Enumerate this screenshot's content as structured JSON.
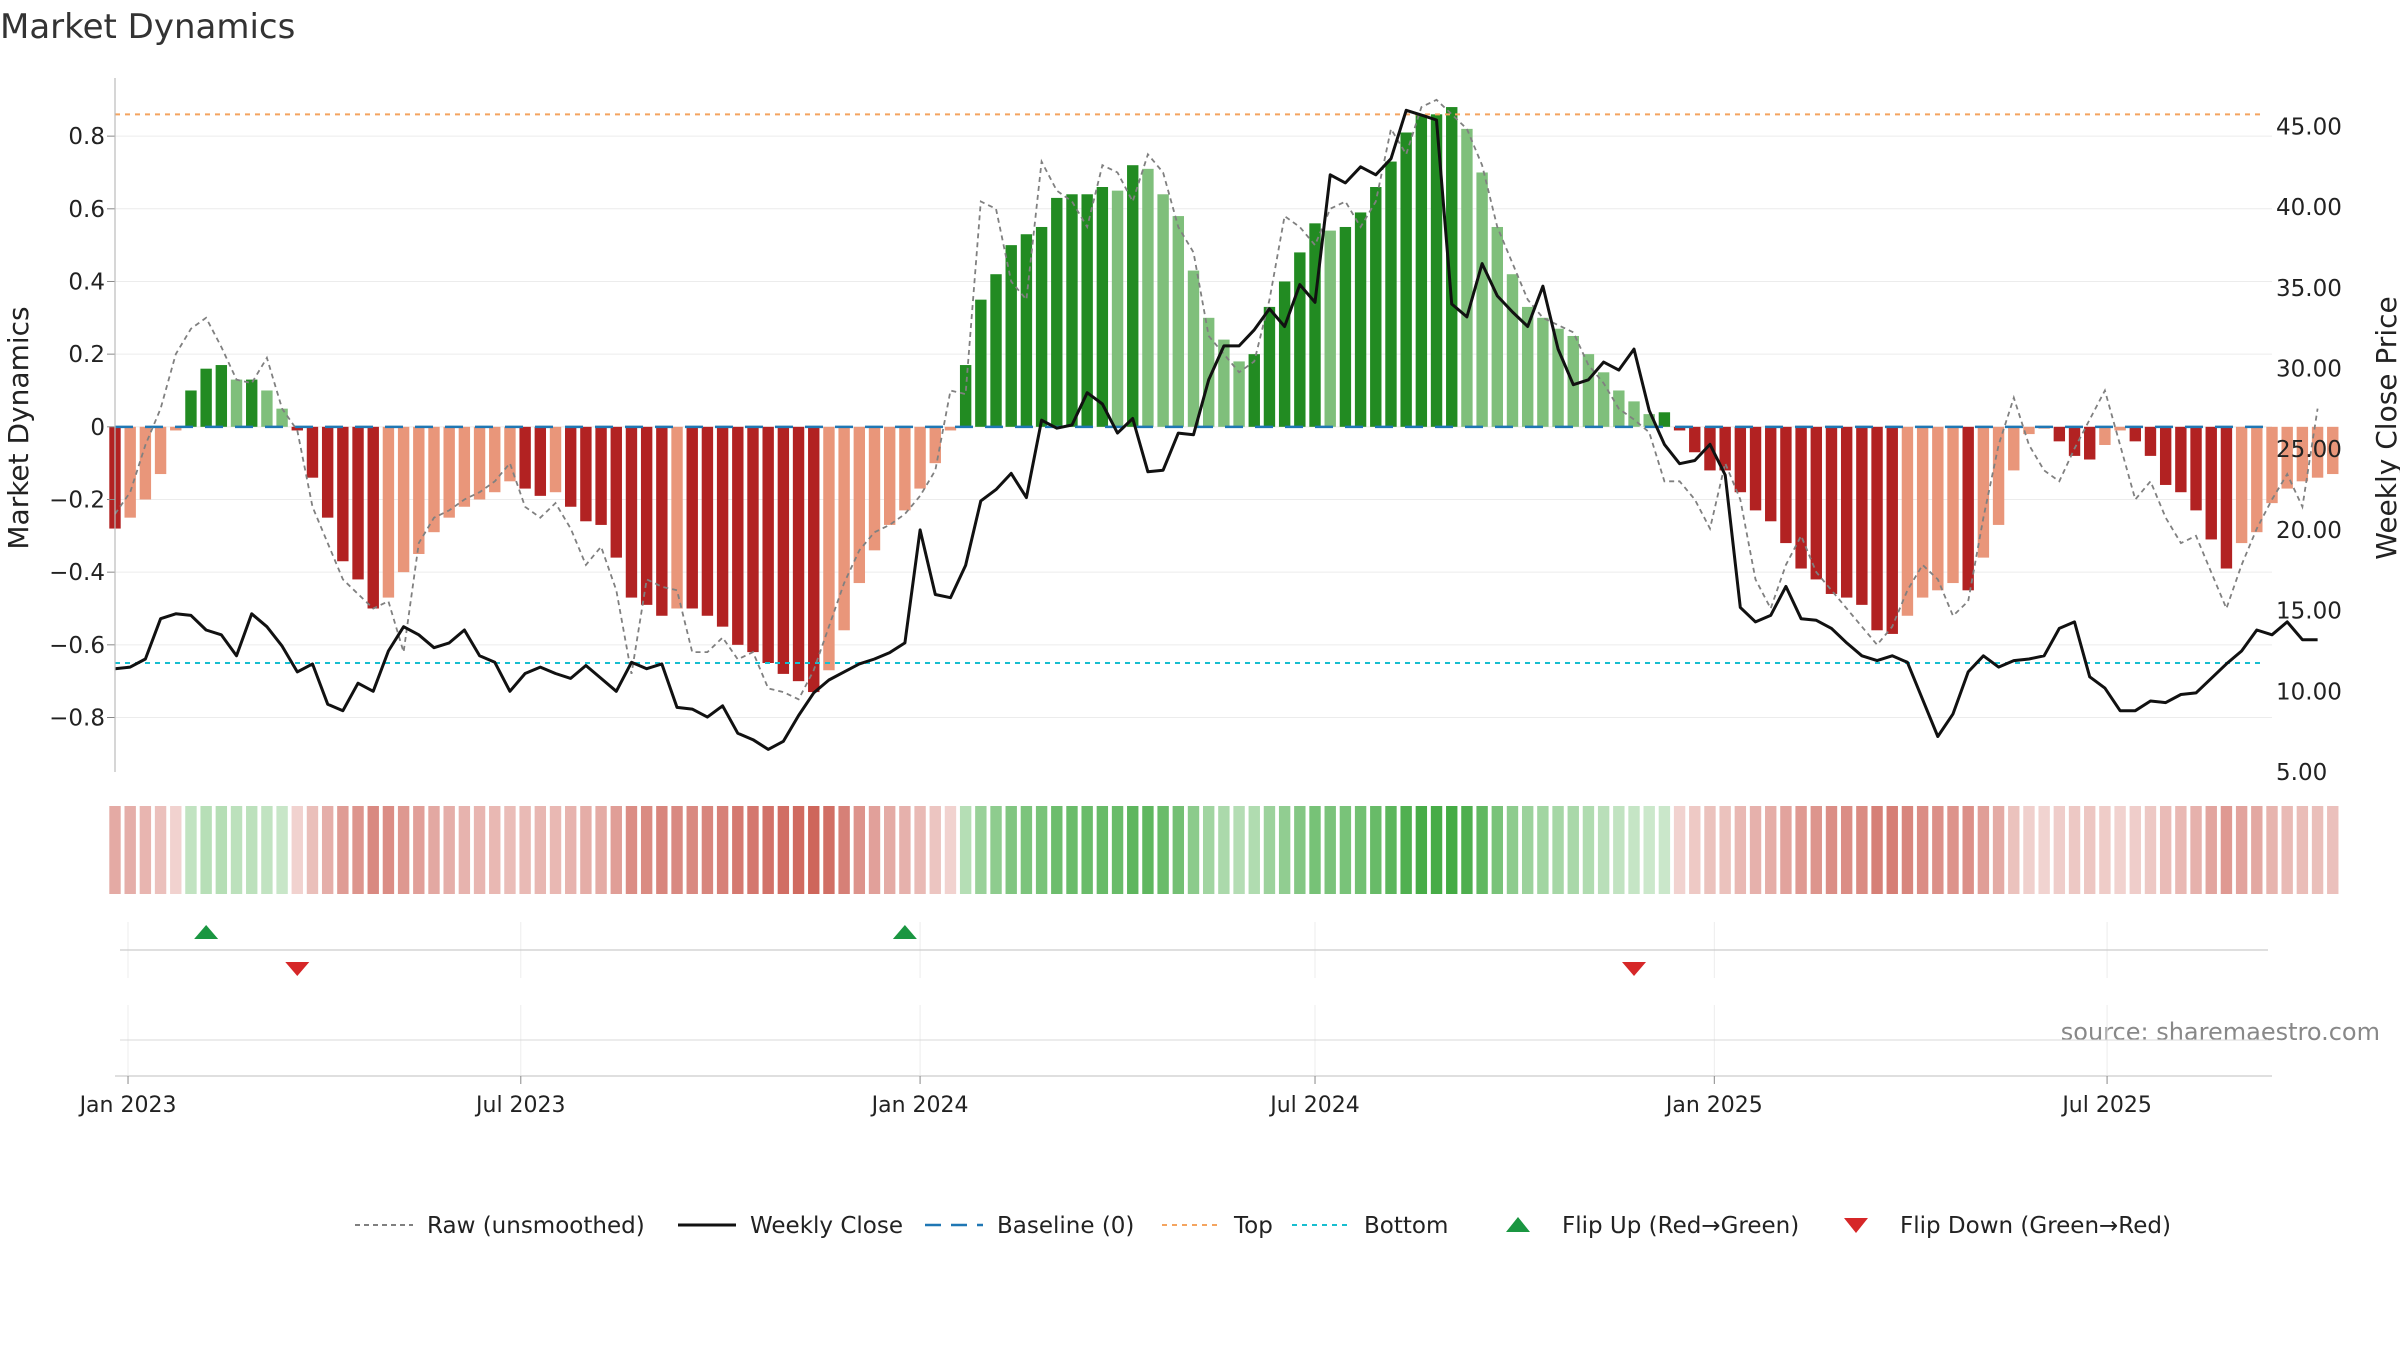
{
  "chart_data": {
    "type": "bar",
    "title": "Market Dynamics",
    "ylabel_left": "Market Dynamics",
    "ylabel_right": "Weekly Close Price",
    "source": "source: sharemaestro.com",
    "x_start": "2022-12-26",
    "x_end": "2025-09-15",
    "ylim_left": [
      -0.95,
      0.96
    ],
    "ylim_right": [
      5,
      48
    ],
    "left_ticks": [
      {
        "v": 0.8,
        "label": "0.8"
      },
      {
        "v": 0.6,
        "label": "0.6"
      },
      {
        "v": 0.4,
        "label": "0.4"
      },
      {
        "v": 0.2,
        "label": "0.2"
      },
      {
        "v": 0,
        "label": "0"
      },
      {
        "v": -0.2,
        "label": "−0.2"
      },
      {
        "v": -0.4,
        "label": "−0.4"
      },
      {
        "v": -0.6,
        "label": "−0.6"
      },
      {
        "v": -0.8,
        "label": "−0.8"
      }
    ],
    "right_ticks": [
      {
        "v": 45,
        "label": "45.00"
      },
      {
        "v": 40,
        "label": "40.00"
      },
      {
        "v": 35,
        "label": "35.00"
      },
      {
        "v": 30,
        "label": "30.00"
      },
      {
        "v": 25,
        "label": "25.00"
      },
      {
        "v": 20,
        "label": "20.00"
      },
      {
        "v": 15,
        "label": "15.00"
      },
      {
        "v": 10,
        "label": "10.00"
      },
      {
        "v": 5,
        "label": "5.00"
      }
    ],
    "x_ticks": [
      {
        "date": "2023-01-01",
        "label": "Jan 2023"
      },
      {
        "date": "2023-07-01",
        "label": "Jul 2023"
      },
      {
        "date": "2024-01-01",
        "label": "Jan 2024"
      },
      {
        "date": "2024-07-01",
        "label": "Jul 2024"
      },
      {
        "date": "2025-01-01",
        "label": "Jan 2025"
      },
      {
        "date": "2025-07-01",
        "label": "Jul 2025"
      }
    ],
    "thresholds": {
      "top": 0.86,
      "bottom": -0.65,
      "baseline": 0
    },
    "colors": {
      "strong_green": "#228b22",
      "weak_green": "#7fbf7b",
      "strong_red": "#b22222",
      "weak_red": "#e9967a",
      "top_line": "#f4a460",
      "bottom_line": "#17becf",
      "baseline": "#1f77b4",
      "close_line": "#111111",
      "raw_line": "#808080",
      "flip_up": "#1a9641",
      "flip_down": "#d62728"
    },
    "legend": [
      {
        "key": "raw",
        "label": "Raw (unsmoothed)"
      },
      {
        "key": "close",
        "label": "Weekly Close"
      },
      {
        "key": "baseline",
        "label": "Baseline (0)"
      },
      {
        "key": "top",
        "label": "Top"
      },
      {
        "key": "bottom",
        "label": "Bottom"
      },
      {
        "key": "flip_up",
        "label": "Flip Up (Red→Green)"
      },
      {
        "key": "flip_down",
        "label": "Flip Down (Green→Red)"
      }
    ],
    "flip_up_dates": [
      "2023-02-06",
      "2023-12-25"
    ],
    "flip_down_dates": [
      "2023-03-20",
      "2024-11-25"
    ],
    "series": [
      {
        "name": "Market Dynamics (smoothed)",
        "start_date": "2022-12-26",
        "interval_days": 7,
        "values": [
          -0.28,
          -0.25,
          -0.2,
          -0.13,
          -0.01,
          0.1,
          0.16,
          0.17,
          0.13,
          0.13,
          0.1,
          0.05,
          -0.01,
          -0.14,
          -0.25,
          -0.37,
          -0.42,
          -0.5,
          -0.47,
          -0.4,
          -0.35,
          -0.29,
          -0.25,
          -0.22,
          -0.2,
          -0.18,
          -0.15,
          -0.17,
          -0.19,
          -0.18,
          -0.22,
          -0.26,
          -0.27,
          -0.36,
          -0.47,
          -0.49,
          -0.52,
          -0.5,
          -0.5,
          -0.52,
          -0.55,
          -0.6,
          -0.62,
          -0.65,
          -0.68,
          -0.7,
          -0.73,
          -0.67,
          -0.56,
          -0.43,
          -0.34,
          -0.27,
          -0.23,
          -0.17,
          -0.1,
          -0.01,
          0.17,
          0.35,
          0.42,
          0.5,
          0.53,
          0.55,
          0.63,
          0.64,
          0.64,
          0.66,
          0.65,
          0.72,
          0.71,
          0.64,
          0.58,
          0.43,
          0.3,
          0.24,
          0.18,
          0.2,
          0.33,
          0.4,
          0.48,
          0.56,
          0.54,
          0.55,
          0.59,
          0.66,
          0.73,
          0.81,
          0.86,
          0.86,
          0.88,
          0.82,
          0.7,
          0.55,
          0.42,
          0.33,
          0.3,
          0.27,
          0.25,
          0.2,
          0.15,
          0.1,
          0.07,
          0.035,
          0.04,
          -0.01,
          -0.07,
          -0.12,
          -0.12,
          -0.18,
          -0.23,
          -0.26,
          -0.32,
          -0.39,
          -0.42,
          -0.46,
          -0.47,
          -0.49,
          -0.56,
          -0.57,
          -0.52,
          -0.47,
          -0.45,
          -0.43,
          -0.45,
          -0.36,
          -0.27,
          -0.12,
          -0.02,
          -0.005,
          -0.04,
          -0.08,
          -0.09,
          -0.05,
          -0.01,
          -0.04,
          -0.08,
          -0.16,
          -0.18,
          -0.23,
          -0.31,
          -0.39,
          -0.32,
          -0.29,
          -0.21,
          -0.17,
          -0.15,
          -0.14,
          -0.13
        ]
      },
      {
        "name": "Raw (unsmoothed)",
        "start_date": "2022-12-26",
        "interval_days": 7,
        "values": [
          -0.24,
          -0.18,
          -0.05,
          0.05,
          0.2,
          0.27,
          0.3,
          0.22,
          0.13,
          0.12,
          0.19,
          0.05,
          -0.01,
          -0.22,
          -0.32,
          -0.42,
          -0.46,
          -0.5,
          -0.48,
          -0.62,
          -0.32,
          -0.25,
          -0.23,
          -0.2,
          -0.18,
          -0.15,
          -0.1,
          -0.22,
          -0.25,
          -0.21,
          -0.28,
          -0.38,
          -0.33,
          -0.45,
          -0.68,
          -0.42,
          -0.44,
          -0.45,
          -0.62,
          -0.62,
          -0.58,
          -0.64,
          -0.62,
          -0.72,
          -0.73,
          -0.75,
          -0.67,
          -0.55,
          -0.43,
          -0.34,
          -0.29,
          -0.27,
          -0.24,
          -0.19,
          -0.12,
          0.1,
          0.09,
          0.62,
          0.6,
          0.4,
          0.35,
          0.73,
          0.65,
          0.62,
          0.55,
          0.72,
          0.7,
          0.62,
          0.75,
          0.7,
          0.55,
          0.48,
          0.25,
          0.2,
          0.15,
          0.18,
          0.35,
          0.58,
          0.55,
          0.5,
          0.6,
          0.62,
          0.55,
          0.62,
          0.82,
          0.75,
          0.88,
          0.9,
          0.86,
          0.82,
          0.72,
          0.55,
          0.45,
          0.35,
          0.3,
          0.28,
          0.26,
          0.17,
          0.12,
          0.05,
          0.02,
          -0.015,
          -0.15,
          -0.15,
          -0.2,
          -0.28,
          -0.1,
          -0.2,
          -0.42,
          -0.5,
          -0.38,
          -0.3,
          -0.4,
          -0.45,
          -0.5,
          -0.55,
          -0.6,
          -0.55,
          -0.45,
          -0.38,
          -0.42,
          -0.52,
          -0.48,
          -0.25,
          -0.05,
          0.08,
          -0.05,
          -0.12,
          -0.15,
          -0.06,
          0.02,
          0.1,
          -0.05,
          -0.2,
          -0.15,
          -0.25,
          -0.32,
          -0.3,
          -0.4,
          -0.5,
          -0.38,
          -0.28,
          -0.2,
          -0.13,
          -0.22,
          0.05
        ]
      },
      {
        "name": "Weekly Close",
        "start_date": "2022-12-26",
        "interval_days": 7,
        "values": [
          11.4,
          11.5,
          12.0,
          14.5,
          14.8,
          14.7,
          13.8,
          13.5,
          12.2,
          14.8,
          14.0,
          12.8,
          11.2,
          11.7,
          9.2,
          8.8,
          10.5,
          10.0,
          12.5,
          14.0,
          13.5,
          12.7,
          13.0,
          13.8,
          12.2,
          11.8,
          10.0,
          11.1,
          11.5,
          11.1,
          10.8,
          11.6,
          10.8,
          10.0,
          11.8,
          11.4,
          11.7,
          9.0,
          8.9,
          8.4,
          9.1,
          7.4,
          7.0,
          6.4,
          6.9,
          8.5,
          9.9,
          10.7,
          11.2,
          11.7,
          12.0,
          12.4,
          13.0,
          20.0,
          16.0,
          15.8,
          17.8,
          21.8,
          22.5,
          23.5,
          22.0,
          26.8,
          26.3,
          26.5,
          28.5,
          27.8,
          26.0,
          26.9,
          23.6,
          23.7,
          26.0,
          25.9,
          29.3,
          31.4,
          31.4,
          32.4,
          33.7,
          32.6,
          35.2,
          34.1,
          42.0,
          41.5,
          42.5,
          42.0,
          43.0,
          46.0,
          45.7,
          45.4,
          34.0,
          33.2,
          36.5,
          34.5,
          33.5,
          32.6,
          35.1,
          31.2,
          29.0,
          29.3,
          30.4,
          29.9,
          31.2,
          27.4,
          25.3,
          24.1,
          24.3,
          25.3,
          23.4,
          15.2,
          14.3,
          14.7,
          16.5,
          14.5,
          14.4,
          13.9,
          13.0,
          12.2,
          11.9,
          12.2,
          11.8,
          9.5,
          7.2,
          8.6,
          11.2,
          12.2,
          11.5,
          11.9,
          12.0,
          12.2,
          13.9,
          14.3,
          10.9,
          10.2,
          8.8,
          8.8,
          9.4,
          9.3,
          9.8,
          9.9,
          10.8,
          11.7,
          12.5,
          13.8,
          13.5,
          14.3,
          13.2,
          13.2
        ]
      }
    ]
  }
}
